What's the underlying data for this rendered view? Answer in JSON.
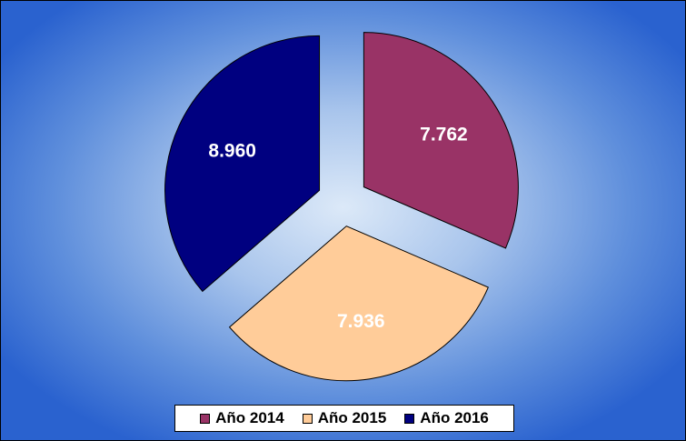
{
  "chart_data": {
    "type": "pie",
    "title": "",
    "categories": [
      "Año 2014",
      "Año 2015",
      "Año 2016"
    ],
    "values": [
      7762,
      7936,
      8960
    ],
    "data_labels": [
      "7.762",
      "7.936",
      "8.960"
    ],
    "colors": [
      "#993366",
      "#ffcc99",
      "#000080"
    ],
    "label_colors": [
      "#ffffff",
      "#ffffff",
      "#ffffff"
    ],
    "exploded": true,
    "legend_position": "bottom"
  }
}
